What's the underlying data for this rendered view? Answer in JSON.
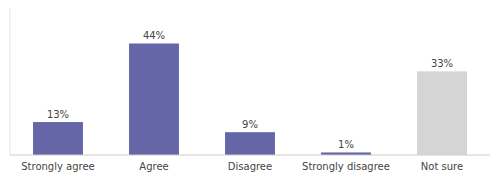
{
  "chart_data": {
    "type": "bar",
    "categories": [
      "Strongly agree",
      "Agree",
      "Disagree",
      "Strongly disagree",
      "Not sure"
    ],
    "values": [
      13,
      44,
      9,
      1,
      33
    ],
    "value_labels": [
      "13%",
      "44%",
      "9%",
      "1%",
      "33%"
    ],
    "colors": [
      "#6466a8",
      "#6466a8",
      "#6466a8",
      "#6466a8",
      "#d5d5d5"
    ],
    "ylim": [
      0,
      58
    ],
    "data_labels": true,
    "tick_labels": "x",
    "grid": false
  }
}
